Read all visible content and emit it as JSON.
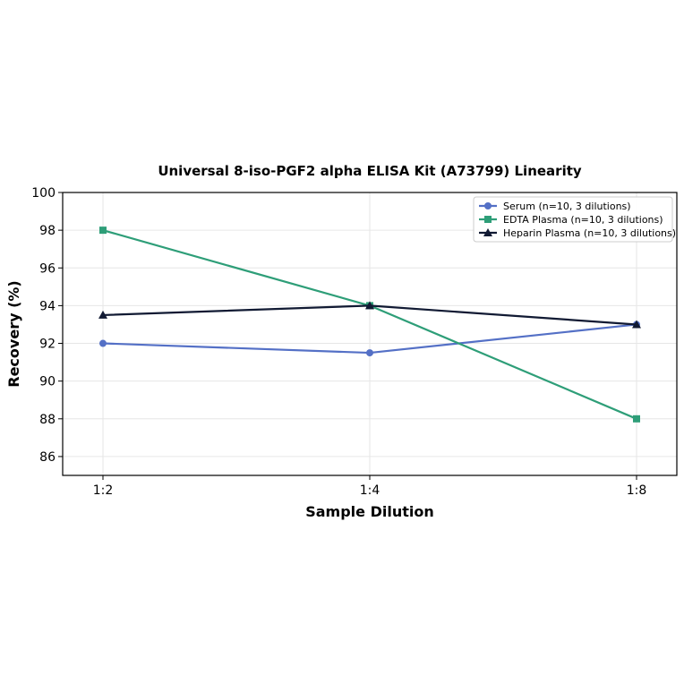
{
  "chart_data": {
    "type": "line",
    "title": "Universal 8-iso-PGF2 alpha ELISA Kit (A73799) Linearity",
    "xlabel": "Sample Dilution",
    "ylabel": "Recovery (%)",
    "categories": [
      "1:2",
      "1:4",
      "1:8"
    ],
    "ylim": [
      85,
      100
    ],
    "yticks": [
      86,
      88,
      90,
      92,
      94,
      96,
      98,
      100
    ],
    "grid": true,
    "legend_position": "top-right",
    "series": [
      {
        "name": "Serum (n=10, 3 dilutions)",
        "values": [
          92,
          91.5,
          93
        ],
        "color": "#5470c6",
        "marker": "circle"
      },
      {
        "name": "EDTA Plasma (n=10, 3 dilutions)",
        "values": [
          98,
          94,
          88
        ],
        "color": "#2e9e78",
        "marker": "square"
      },
      {
        "name": "Heparin Plasma (n=10, 3 dilutions)",
        "values": [
          93.5,
          94,
          93
        ],
        "color": "#111a33",
        "marker": "triangle"
      }
    ]
  }
}
